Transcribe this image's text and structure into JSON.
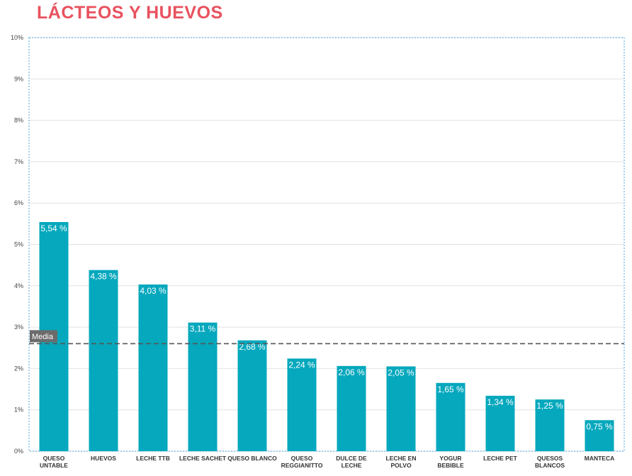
{
  "title": "LÁCTEOS Y HUEVOS",
  "colors": {
    "title": "#e8525f",
    "bar": "#06a8bd",
    "mean_line": "#555555",
    "media_badge": "#6b6b6b",
    "grid": "#e2e2e2",
    "frame": "#4da6e0"
  },
  "chart_data": {
    "type": "bar",
    "title": "LÁCTEOS Y HUEVOS",
    "ylim": [
      0,
      10
    ],
    "yticks": [
      "0%",
      "1%",
      "2%",
      "3%",
      "4%",
      "5%",
      "6%",
      "7%",
      "8%",
      "9%",
      "10%"
    ],
    "categories": [
      [
        "QUESO",
        "UNTABLE"
      ],
      [
        "HUEVOS"
      ],
      [
        "LECHE TTB"
      ],
      [
        "LECHE SACHET"
      ],
      [
        "QUESO BLANCO"
      ],
      [
        "QUESO",
        "REGGIANITTO"
      ],
      [
        "DULCE DE",
        "LECHE"
      ],
      [
        "LECHE EN",
        "POLVO"
      ],
      [
        "YOGUR",
        "BEBIBLE"
      ],
      [
        "LECHE PET"
      ],
      [
        "QUESOS",
        "BLANCOS"
      ],
      [
        "MANTECA"
      ]
    ],
    "values": [
      5.54,
      4.38,
      4.03,
      3.11,
      2.68,
      2.24,
      2.06,
      2.05,
      1.65,
      1.34,
      1.25,
      0.75
    ],
    "value_labels": [
      "5,54 %",
      "4,38 %",
      "4,03 %",
      "3,11 %",
      "2,68 %",
      "2,24 %",
      "2,06 %",
      "2,05 %",
      "1,65 %",
      "1,34 %",
      "1,25 %",
      "0,75 %"
    ],
    "mean": {
      "label": "Media",
      "value": 2.6
    },
    "grid": true
  }
}
